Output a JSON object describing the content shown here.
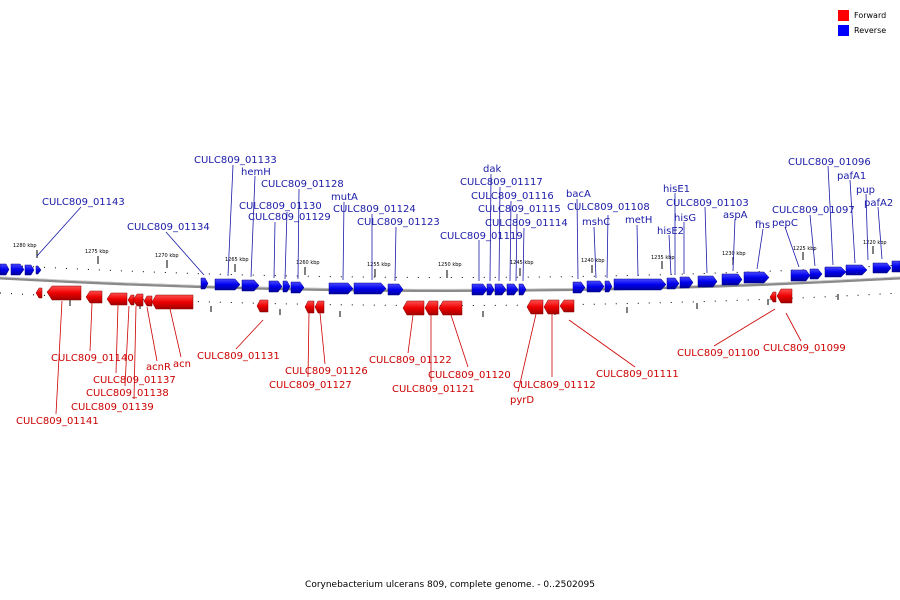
{
  "caption": "Corynebacterium ulcerans 809, complete genome. - 0..2502095",
  "legend": {
    "forward": {
      "label": "Forward",
      "color": "#ff0000"
    },
    "reverse": {
      "label": "Reverse",
      "color": "#0000ff"
    }
  },
  "ticks": [
    "1280 kbp",
    "1275 kbp",
    "1270 kbp",
    "1265 kbp",
    "1260 kbp",
    "1255 kbp",
    "1250 kbp",
    "1245 kbp",
    "1240 kbp",
    "1235 kbp",
    "1230 kbp",
    "1225 kbp",
    "1220 kbp"
  ],
  "reverse_labels": [
    "CULC809_01143",
    "CULC809_01134",
    "CULC809_01133",
    "hemH",
    "CULC809_01128",
    "CULC809_01130",
    "CULC809_01129",
    "mutA",
    "CULC809_01124",
    "CULC809_01123",
    "dak",
    "CULC809_01117",
    "CULC809_01116",
    "CULC809_01115",
    "CULC809_01114",
    "CULC809_01119",
    "bacA",
    "CULC809_01108",
    "mshC",
    "metH",
    "hisE1",
    "CULC809_01103",
    "hisG",
    "hisE2",
    "aspA",
    "fhs",
    "pepC",
    "CULC809_01096",
    "pafA1",
    "CULC809_01097",
    "pup",
    "pafA2"
  ],
  "forward_labels": [
    "CULC809_01140",
    "CULC809_01137",
    "acnR",
    "acn",
    "CULC809_01138",
    "CULC809_01139",
    "CULC809_01141",
    "CULC809_01131",
    "CULC809_01126",
    "CULC809_01127",
    "CULC809_01122",
    "CULC809_01121",
    "CULC809_01120",
    "CULC809_01112",
    "pyrD",
    "CULC809_01111",
    "CULC809_01100",
    "CULC809_01099"
  ]
}
